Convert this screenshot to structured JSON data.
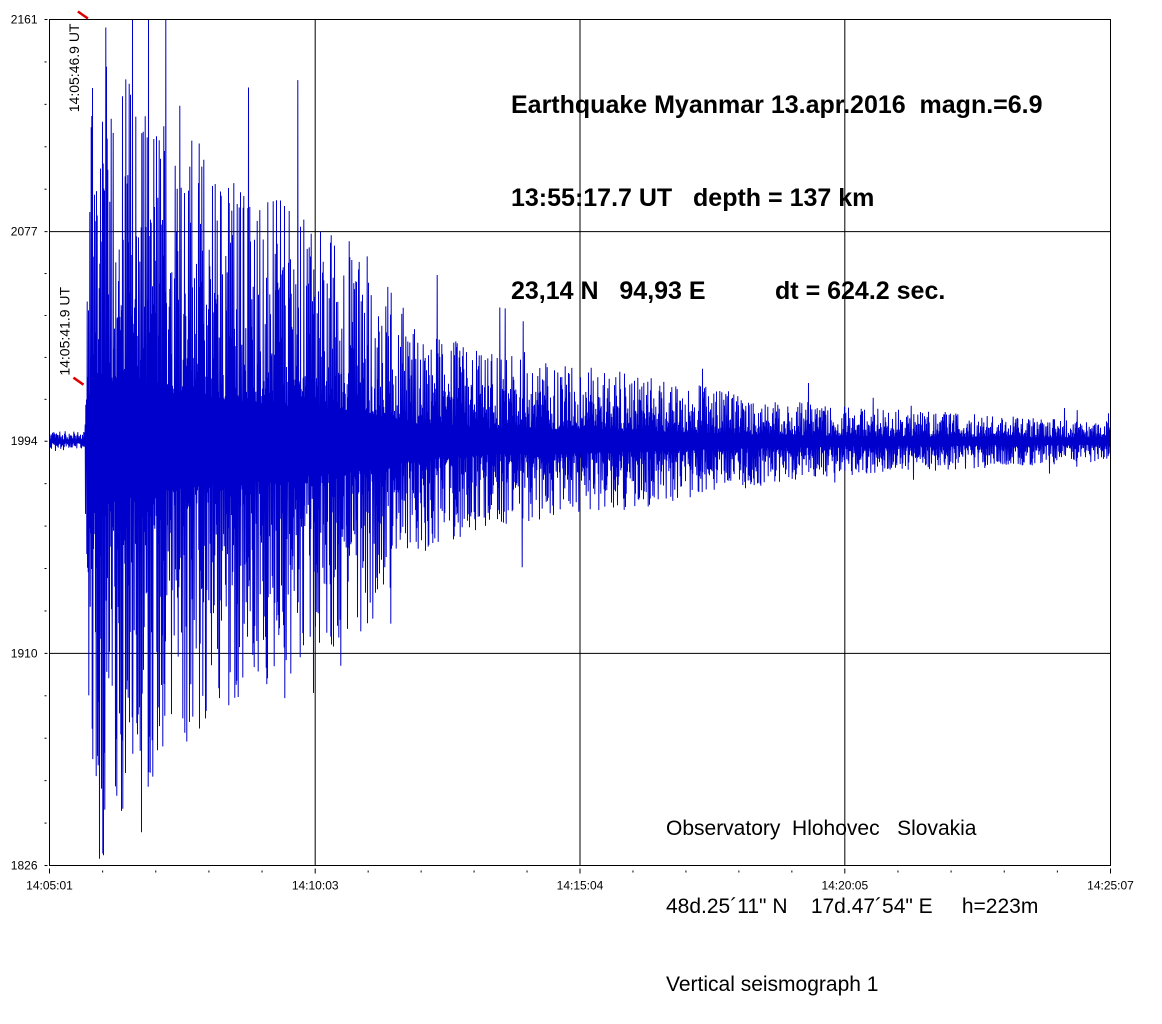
{
  "chart_data": {
    "type": "line",
    "title_lines": [
      "Earthquake Myanmar 13.apr.2016  magn.=6.9",
      "13:55:17.7 UT   depth = 137 km",
      "23,14 N   94,93 E          dt = 624.2 sec."
    ],
    "station_lines": [
      "Observatory  Hlohovec   Slovakia",
      "48d.25´11\" N    17d.47´54\" E     h=223m",
      "Vertical seismograph 1"
    ],
    "ylim": [
      1826,
      2161
    ],
    "y_ticks": [
      "2161",
      "2077",
      "1994",
      "1910",
      "1826"
    ],
    "y_tick_values": [
      2161,
      2077,
      1994,
      1910,
      1826
    ],
    "x_range_seconds": [
      0,
      1206
    ],
    "x_ticks": [
      "14:05:01",
      "14:10:03",
      "14:15:04",
      "14:20:05",
      "14:25:07"
    ],
    "x_tick_seconds": [
      0,
      302,
      603,
      904,
      1206
    ],
    "grid": true,
    "baseline": 1994,
    "markers": [
      {
        "label": "14:05:41.9 UT",
        "t": 40.9,
        "value": 2016
      },
      {
        "label": "14:05:46.9 UT",
        "t": 45.9,
        "value": 2161
      }
    ],
    "envelope": {
      "t": [
        0,
        40,
        42,
        48,
        70,
        130,
        200,
        260,
        350,
        420,
        500,
        600,
        700,
        800,
        900,
        1000,
        1100,
        1206
      ],
      "amplitude": [
        4,
        4,
        60,
        180,
        160,
        130,
        110,
        95,
        80,
        45,
        35,
        30,
        25,
        18,
        14,
        12,
        10,
        8
      ]
    },
    "colors": {
      "trace": "#0000cc",
      "marker": "#dd0000",
      "grid": "#000000"
    }
  }
}
